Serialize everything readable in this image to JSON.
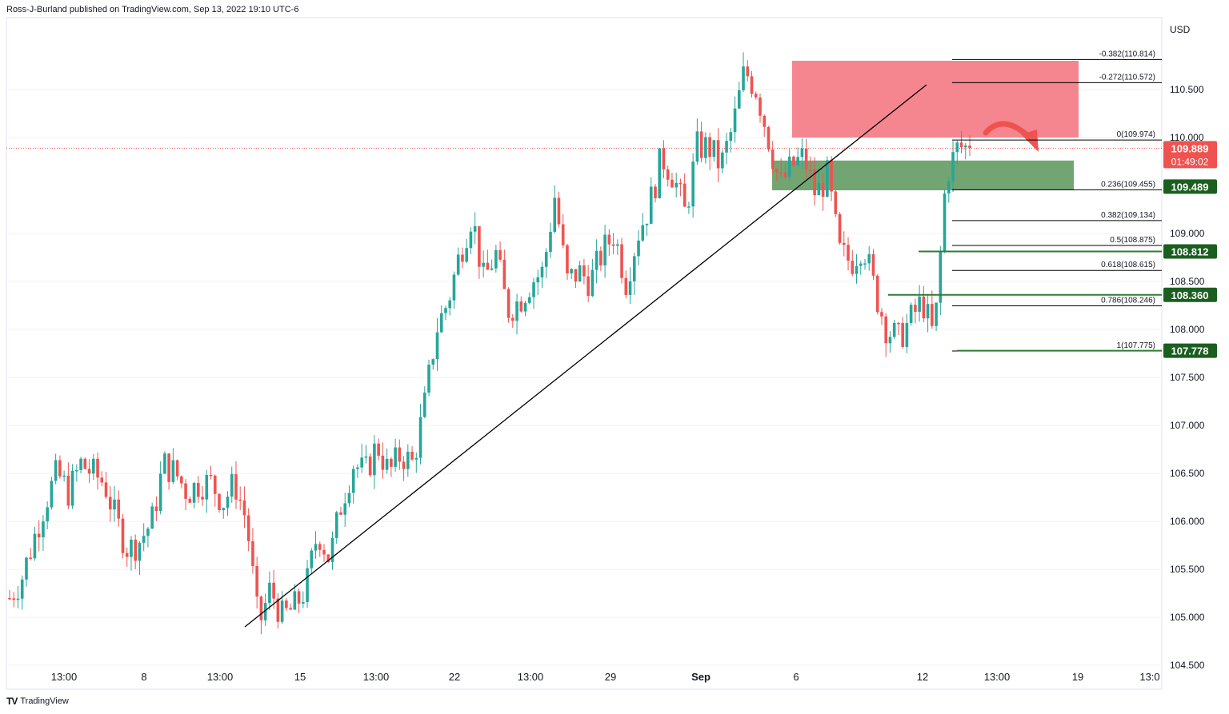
{
  "header": {
    "publisher_text": "Ross-J-Burland published on TradingView.com, Sep 13, 2022 19:10 UTC-6"
  },
  "footer": {
    "logo_text": "TV",
    "brand": "TradingView"
  },
  "chart_data": {
    "type": "candlestick",
    "title": "",
    "currency_label": "USD",
    "colors": {
      "up": "#26a69a",
      "down": "#ef5350",
      "axis_text": "#131722",
      "last_price_bg": "#ef5350",
      "level_bg": "#1b5e20",
      "supply_zone": "#f3707b",
      "demand_zone": "#4f8f4f"
    },
    "y_range": [
      104.25,
      111.25
    ],
    "y_ticks": [
      "104.500",
      "105.000",
      "105.500",
      "106.000",
      "106.500",
      "107.000",
      "107.500",
      "108.000",
      "108.500",
      "109.000",
      "110.000",
      "110.500"
    ],
    "x_ticks": [
      "13:00",
      "8",
      "13:00",
      "15",
      "13:00",
      "22",
      "13:00",
      "29",
      "Sep",
      "6",
      "12",
      "13:00",
      "19",
      "13:0"
    ],
    "close_path": [
      105.2,
      105.4,
      105.8,
      106.2,
      106.5,
      106.3,
      106.6,
      106.5,
      106.4,
      106.0,
      105.7,
      105.8,
      106.0,
      106.6,
      106.5,
      106.3,
      106.4,
      106.4,
      106.2,
      106.4,
      106.0,
      104.9,
      105.3,
      105.0,
      105.1,
      105.3,
      105.9,
      105.6,
      106.2,
      106.6,
      106.5,
      106.8,
      106.5,
      106.7,
      106.6,
      107.2,
      108.0,
      108.3,
      108.8,
      109.2,
      108.5,
      108.8,
      108.2,
      108.3,
      108.5,
      108.6,
      109.4,
      108.5,
      108.6,
      108.5,
      108.8,
      109.0,
      108.5,
      109.0,
      109.3,
      109.8,
      109.6,
      109.2,
      109.9,
      109.9,
      109.7,
      110.1,
      110.7,
      110.5,
      110.0,
      109.5,
      109.7,
      109.8,
      109.4,
      109.6,
      108.8,
      108.7,
      108.9,
      108.4,
      108.0,
      107.9,
      108.1,
      108.3,
      107.9,
      109.6,
      109.9,
      109.889
    ],
    "last_price": "109.889",
    "countdown": "01:49:02",
    "price_labels": [
      "109.489",
      "108.812",
      "108.360",
      "107.778"
    ],
    "fib_levels": [
      {
        "label": "-0.382(110.814)",
        "value": 110.814
      },
      {
        "label": "-0.272(110.572)",
        "value": 110.572
      },
      {
        "label": "0(109.974)",
        "value": 109.974
      },
      {
        "label": "0.236(109.455)",
        "value": 109.455
      },
      {
        "label": "0.382(109.134)",
        "value": 109.134
      },
      {
        "label": "0.5(108.875)",
        "value": 108.875
      },
      {
        "label": "0.618(108.615)",
        "value": 108.615
      },
      {
        "label": "0.786(108.246)",
        "value": 108.246
      },
      {
        "label": "1(107.775)",
        "value": 107.775
      }
    ],
    "supply_zone": [
      110.0,
      110.8
    ],
    "demand_zone": [
      109.45,
      109.76
    ],
    "support_levels": [
      108.812,
      108.36,
      107.778
    ]
  }
}
